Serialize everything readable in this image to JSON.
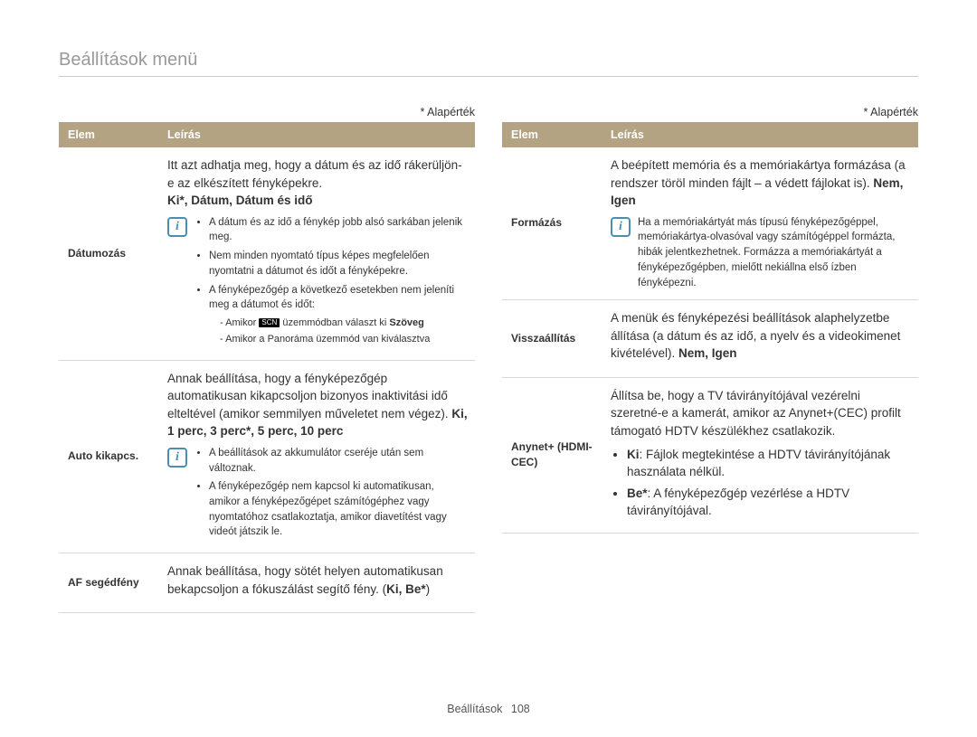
{
  "page": {
    "title": "Beállítások menü",
    "default_note": "* Alapérték",
    "footer_label": "Beállítások",
    "page_number": "108"
  },
  "table_headers": {
    "item": "Elem",
    "desc": "Leírás"
  },
  "left": {
    "row1": {
      "item": "Dátumozás",
      "main": "Itt azt adhatja meg, hogy a dátum és az idő rákerüljön-e az elkészített fényképekre.",
      "opts": "Ki*, Dátum, Dátum és idő",
      "note_b1": "A dátum és az idő a fénykép jobb alsó sarkában jelenik meg.",
      "note_b2": "Nem minden nyomtató típus képes megfelelően nyomtatni a dátumot és időt a fényképekre.",
      "note_b3": "A fényképezőgép a következő esetekben nem jeleníti meg a dátumot és időt:",
      "note_sub1_a": "Amikor ",
      "note_sub1_b": " üzemmódban választ ki ",
      "note_sub1_c": "Szöveg",
      "note_sub2": "Amikor a Panoráma üzemmód van kiválasztva"
    },
    "row2": {
      "item": "Auto kikapcs.",
      "main": "Annak beállítása, hogy a fényképezőgép automatikusan kikapcsoljon bizonyos inaktivitási idő elteltével (amikor semmilyen műveletet nem végez). ",
      "opts": "Ki, 1 perc, 3 perc*, 5 perc, 10 perc",
      "note_b1": "A beállítások az akkumulátor cseréje után sem változnak.",
      "note_b2": "A fényképezőgép nem kapcsol ki automatikusan, amikor a fényképezőgépet számítógéphez vagy nyomtatóhoz csatlakoztatja, amikor diavetítést vagy videót játszik le."
    },
    "row3": {
      "item": "AF segédfény",
      "main": "Annak beállítása, hogy sötét helyen automatikusan bekapcsoljon a fókuszálást segítő fény. (",
      "opts": "Ki, Be*",
      "close": ")"
    }
  },
  "right": {
    "row1": {
      "item": "Formázás",
      "main": "A beépített memória és a memóriakártya formázása (a rendszer töröl minden fájlt – a védett fájlokat is). ",
      "opts": "Nem, Igen",
      "note": "Ha a memóriakártyát más típusú fényképezőgéppel, memóriakártya-olvasóval vagy számítógéppel formázta, hibák jelentkezhetnek. Formázza a memóriakártyát a fényképezőgépben, mielőtt nekiállna első ízben fényképezni."
    },
    "row2": {
      "item": "Visszaállítás",
      "main": "A menük és fényképezési beállítások alaphelyzetbe állítása (a dátum és az idő, a nyelv és a videokimenet kivételével). ",
      "opts": "Nem, Igen"
    },
    "row3": {
      "item": "Anynet+ (HDMI-CEC)",
      "main": "Állítsa be, hogy a TV távirányítójával vezérelni szeretné-e a kamerát, amikor az Anynet+(CEC) profilt támogató HDTV készülékhez csatlakozik.",
      "b1_bold": "Ki",
      "b1_rest": ": Fájlok megtekintése a HDTV távirányítójának használata nélkül.",
      "b2_bold": "Be*",
      "b2_rest": ": A fényképezőgép vezérlése a HDTV távirányítójával."
    }
  },
  "colors": {
    "header_bg": "#b3a383",
    "header_fg": "#ffffff",
    "title_fg": "#999999",
    "rule": "#cccccc",
    "note_icon": "#4a8fb3",
    "row_border": "#d8d8d8"
  }
}
